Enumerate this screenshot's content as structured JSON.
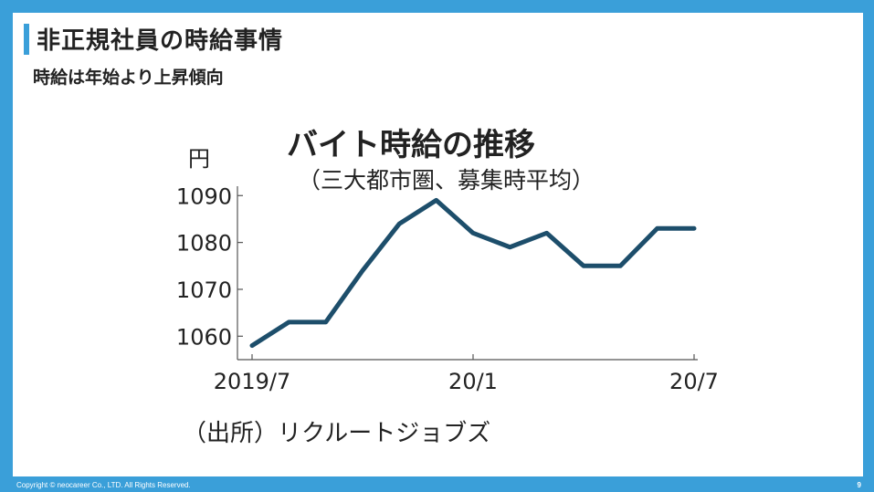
{
  "slide": {
    "title": "非正規社員の時給事情",
    "subtitle": "時給は年始より上昇傾向"
  },
  "chart_data": {
    "type": "line",
    "title": "バイト時給の推移",
    "subtitle": "（三大都市圏、募集時平均）",
    "ylabel": "円",
    "source": "（出所）リクルートジョブズ",
    "ylim": [
      1055,
      1092
    ],
    "yticks": [
      1060,
      1070,
      1080,
      1090
    ],
    "xtick_labels": [
      {
        "index": 0,
        "label": "2019/7"
      },
      {
        "index": 6,
        "label": "20/1"
      },
      {
        "index": 12,
        "label": "20/7"
      }
    ],
    "x": [
      "2019/7",
      "2019/8",
      "2019/9",
      "2019/10",
      "2019/11",
      "2019/12",
      "20/1",
      "20/2",
      "20/3",
      "20/4",
      "20/5",
      "20/6",
      "20/7"
    ],
    "values": [
      1058,
      1063,
      1063,
      1074,
      1084,
      1089,
      1082,
      1079,
      1082,
      1075,
      1075,
      1083,
      1083
    ],
    "line_color": "#1d4e6b",
    "grid": false
  },
  "footer": {
    "copyright": "Copyright © neocareer Co., LTD. All Rights Reserved.",
    "page": "9"
  }
}
